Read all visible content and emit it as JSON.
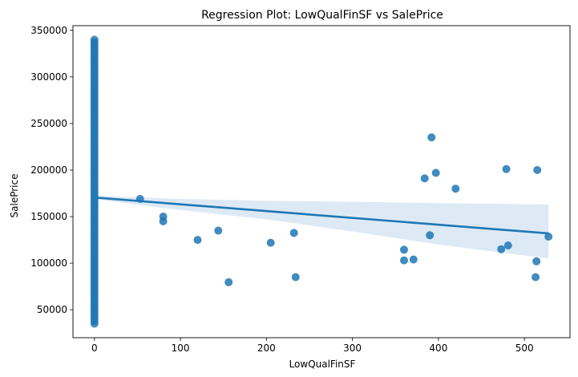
{
  "chart_data": {
    "type": "scatter",
    "title": "Regression Plot: LowQualFinSF vs SalePrice",
    "xlabel": "LowQualFinSF",
    "ylabel": "SalePrice",
    "xlim": [
      -25,
      553
    ],
    "ylim": [
      20000,
      355000
    ],
    "xticks": [
      0,
      100,
      200,
      300,
      400,
      500
    ],
    "yticks": [
      50000,
      100000,
      150000,
      200000,
      250000,
      300000,
      350000
    ],
    "grid": false,
    "legend": "none",
    "point_color": "#1f77b4",
    "line_color": "#1f77b4",
    "band_color": "#c6dcef",
    "zero_column_y_range": [
      35000,
      340000
    ],
    "points": [
      {
        "x": 53,
        "y": 169000
      },
      {
        "x": 80,
        "y": 150000
      },
      {
        "x": 80,
        "y": 145000
      },
      {
        "x": 120,
        "y": 125000
      },
      {
        "x": 144,
        "y": 135000
      },
      {
        "x": 156,
        "y": 79500
      },
      {
        "x": 205,
        "y": 122000
      },
      {
        "x": 232,
        "y": 132500
      },
      {
        "x": 234,
        "y": 85000
      },
      {
        "x": 360,
        "y": 114500
      },
      {
        "x": 360,
        "y": 103000
      },
      {
        "x": 371,
        "y": 104000
      },
      {
        "x": 384,
        "y": 191000
      },
      {
        "x": 390,
        "y": 130000
      },
      {
        "x": 392,
        "y": 235000
      },
      {
        "x": 397,
        "y": 197000
      },
      {
        "x": 420,
        "y": 180000
      },
      {
        "x": 473,
        "y": 115000
      },
      {
        "x": 479,
        "y": 201000
      },
      {
        "x": 481,
        "y": 119000
      },
      {
        "x": 513,
        "y": 85000
      },
      {
        "x": 514,
        "y": 102000
      },
      {
        "x": 515,
        "y": 200000
      },
      {
        "x": 528,
        "y": 128500
      }
    ],
    "regression": {
      "x": [
        0,
        528
      ],
      "y": [
        170500,
        132000
      ]
    },
    "confidence_band": {
      "x": [
        0,
        100,
        200,
        300,
        400,
        528
      ],
      "upper": [
        172500,
        169000,
        167000,
        166000,
        164500,
        163000
      ],
      "lower": [
        168500,
        157000,
        147000,
        134000,
        120000,
        105000
      ]
    }
  }
}
